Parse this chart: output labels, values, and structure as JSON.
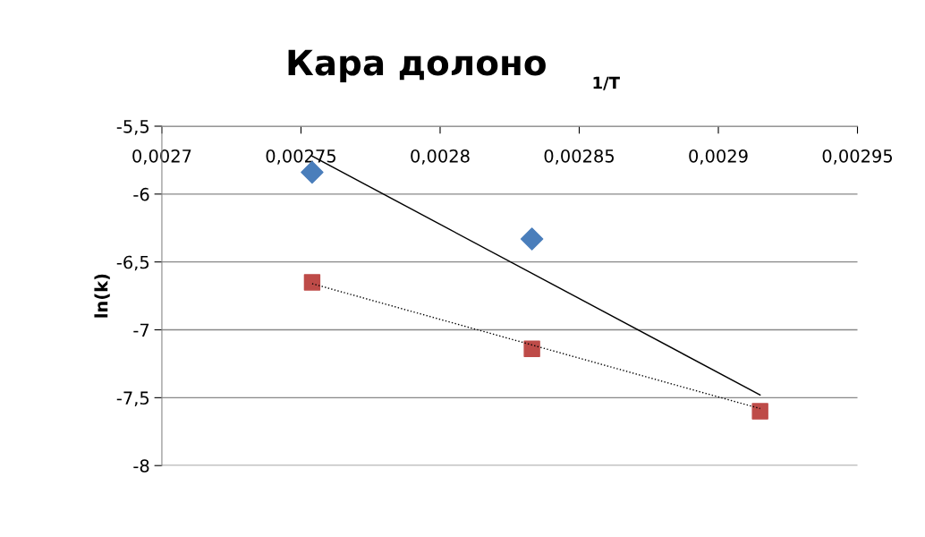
{
  "chart_data": {
    "type": "scatter",
    "title": "Кара долоно",
    "xlabel": "1/T",
    "ylabel": "ln(k)",
    "xlim": [
      0.0027,
      0.00295
    ],
    "xticks": [
      {
        "value": 0.0027,
        "label": "0,0027"
      },
      {
        "value": 0.00275,
        "label": "0,00275"
      },
      {
        "value": 0.0028,
        "label": "0,0028"
      },
      {
        "value": 0.00285,
        "label": "0,00285"
      },
      {
        "value": 0.0029,
        "label": "0,0029"
      },
      {
        "value": 0.00295,
        "label": "0,00295"
      }
    ],
    "ylim": [
      -8,
      -5.5
    ],
    "yticks": [
      {
        "value": -5.5,
        "label": "-5,5"
      },
      {
        "value": -6,
        "label": "-6"
      },
      {
        "value": -6.5,
        "label": "-6,5"
      },
      {
        "value": -7,
        "label": "-7"
      },
      {
        "value": -7.5,
        "label": "-7,5"
      },
      {
        "value": -8,
        "label": "-8"
      }
    ],
    "grid": "y",
    "series": [
      {
        "marker": "diamond",
        "color": "#4a7ebb",
        "x": [
          0.002754,
          0.002833
        ],
        "values": [
          -5.84,
          -6.33
        ]
      },
      {
        "marker": "square",
        "color": "#be4b48",
        "x": [
          0.002754,
          0.002833,
          0.002915
        ],
        "values": [
          -6.65,
          -7.14,
          -7.6
        ]
      },
      {
        "type": "line",
        "line_style": "solid",
        "color": "#000000",
        "x": [
          0.002754,
          0.002915
        ],
        "values": [
          -5.72,
          -7.48
        ]
      },
      {
        "type": "line",
        "line_style": "dotted",
        "color": "#000000",
        "x": [
          0.002754,
          0.002915
        ],
        "values": [
          -6.66,
          -7.58
        ]
      }
    ]
  }
}
